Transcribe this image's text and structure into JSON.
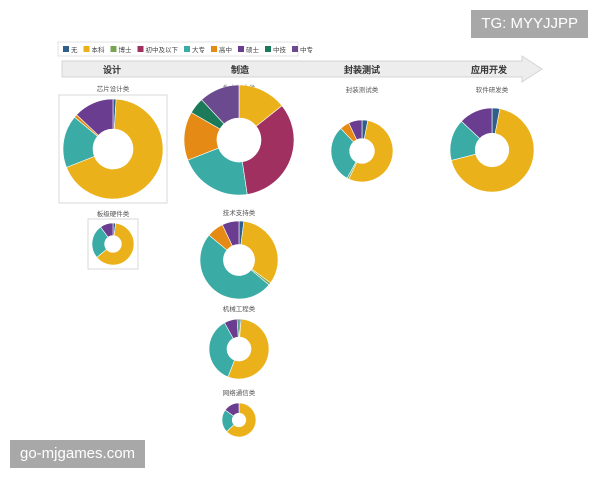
{
  "watermarks": {
    "top_right": "TG: MYYJJPP",
    "bottom_left": "go-mjgames.com"
  },
  "chart_data": {
    "type": "pie",
    "variant": "donut",
    "legend": {
      "placement": "top-left",
      "items": [
        {
          "label": "无",
          "color": "#2f5f8a"
        },
        {
          "label": "本科",
          "color": "#eab11a"
        },
        {
          "label": "博士",
          "color": "#7aa452"
        },
        {
          "label": "初中及以下",
          "color": "#a03060"
        },
        {
          "label": "大专",
          "color": "#3aaba5"
        },
        {
          "label": "高中",
          "color": "#e58a14"
        },
        {
          "label": "硕士",
          "color": "#6a3d90"
        },
        {
          "label": "中技",
          "color": "#1a7a5a"
        },
        {
          "label": "中专",
          "color": "#6b4a8f"
        }
      ]
    },
    "stages": [
      "设计",
      "制造",
      "封装测试",
      "应用开发"
    ],
    "charts": [
      {
        "title": "芯片设计类",
        "stage": "设计",
        "values": [
          1,
          68,
          0,
          0,
          17,
          1,
          13,
          0,
          0
        ]
      },
      {
        "title": "板级硬件类",
        "stage": "设计",
        "values": [
          2,
          62,
          0,
          0,
          26,
          0,
          10,
          0,
          0
        ]
      },
      {
        "title": "生产制造类",
        "stage": "制造",
        "values": [
          0,
          12,
          0,
          28,
          18,
          12,
          0,
          4,
          10
        ]
      },
      {
        "title": "技术支持类",
        "stage": "制造",
        "values": [
          2,
          33,
          1,
          0,
          50,
          7,
          7,
          0,
          0
        ]
      },
      {
        "title": "机械工程类",
        "stage": "制造",
        "values": [
          1,
          55,
          0,
          0,
          36,
          0,
          7,
          1,
          0
        ]
      },
      {
        "title": "网络通信类",
        "stage": "制造",
        "values": [
          0,
          63,
          0,
          0,
          22,
          0,
          15,
          0,
          0
        ]
      },
      {
        "title": "封装测试类",
        "stage": "封装测试",
        "values": [
          3,
          54,
          1,
          0,
          30,
          5,
          7,
          0,
          0
        ]
      },
      {
        "title": "软件研发类",
        "stage": "应用开发",
        "values": [
          3,
          68,
          0,
          0,
          16,
          0,
          13,
          0,
          0
        ]
      }
    ]
  }
}
